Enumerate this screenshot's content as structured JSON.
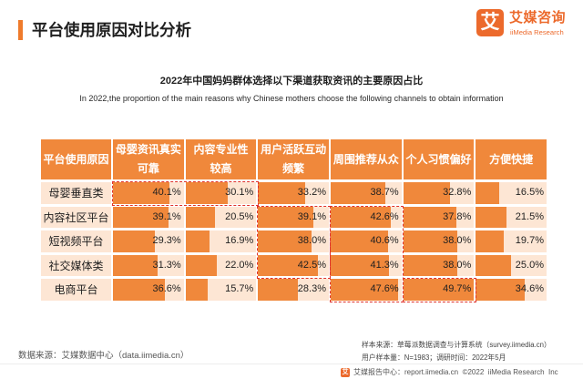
{
  "colors": {
    "accent": "#ef7b2c",
    "brand": "#ec6a2c",
    "header_cell": "#f0883b",
    "bar": "#f0883b",
    "cell_background": "#fde6d4",
    "highlight_border": "#e0322c"
  },
  "header": {
    "title": "平台使用原因对比分析",
    "logo_mark": "艾",
    "brand_cn": "艾媒咨询",
    "brand_en": "iiMedia Research"
  },
  "chart_data": {
    "type": "table",
    "title": "2022年中国妈妈群体选择以下渠道获取资讯的主要原因占比",
    "subtitle": "In 2022,the proportion of the main reasons why Chinese mothers choose the following channels to obtain information",
    "corner_label": "平台使用原因",
    "columns": [
      "母婴资讯真实\n可靠",
      "内容专业性\n较高",
      "用户活跃互动\n频繁",
      "周围推荐从众",
      "个人习惯偏好",
      "方便快捷"
    ],
    "bar_range": [
      0,
      50
    ],
    "rows": [
      {
        "name": "母婴垂直类",
        "values": [
          40.1,
          30.1,
          33.2,
          38.7,
          32.8,
          16.5
        ],
        "labels": [
          "40.1%",
          "30.1%",
          "33.2%",
          "38.7%",
          "32.8%",
          "16.5%"
        ]
      },
      {
        "name": "内容社区平台",
        "values": [
          39.1,
          20.5,
          39.1,
          42.6,
          37.8,
          21.5
        ],
        "labels": [
          "39.1%",
          "20.5%",
          "39.1%",
          "42.6%",
          "37.8%",
          "21.5%"
        ]
      },
      {
        "name": "短视频平台",
        "values": [
          29.3,
          16.9,
          38.0,
          40.6,
          38.0,
          19.7
        ],
        "labels": [
          "29.3%",
          "16.9%",
          "38.0%",
          "40.6%",
          "38.0%",
          "19.7%"
        ]
      },
      {
        "name": "社交媒体类",
        "values": [
          31.3,
          22.0,
          42.5,
          41.3,
          38.0,
          25.0
        ],
        "labels": [
          "31.3%",
          "22.0%",
          "42.5%",
          "41.3%",
          "38.0%",
          "25.0%"
        ]
      },
      {
        "name": "电商平台",
        "values": [
          36.6,
          15.7,
          28.3,
          47.6,
          49.7,
          34.6
        ],
        "labels": [
          "36.6%",
          "15.7%",
          "28.3%",
          "47.6%",
          "49.7%",
          "34.6%"
        ]
      }
    ],
    "highlights": [
      {
        "rows": [
          0,
          0
        ],
        "cols": [
          0,
          1
        ]
      },
      {
        "rows": [
          1,
          3
        ],
        "cols": [
          2,
          2
        ]
      },
      {
        "rows": [
          1,
          4
        ],
        "cols": [
          3,
          3
        ]
      },
      {
        "rows": [
          4,
          4
        ],
        "cols": [
          4,
          4
        ]
      }
    ]
  },
  "footer": {
    "data_source": "数据来源：艾媒数据中心（data.iimedia.cn）",
    "sample_source": "样本来源：草莓派数据调查与计算系统（survey.iimedia.cn）",
    "sample_info": "用户样本量：N=1983；调研时间：2022年5月",
    "report_center": "艾媒报告中心：report.iimedia.cn  ©2022  iiMedia Research  Inc"
  }
}
